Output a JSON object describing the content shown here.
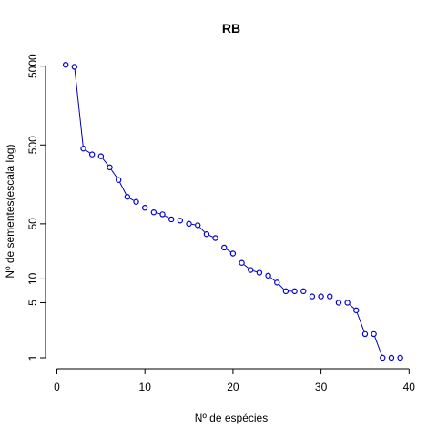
{
  "chart_data": {
    "type": "scatter",
    "title": "RB",
    "xlabel": "Nº de espécies",
    "ylabel": "Nº de sementes(escala log)",
    "xlim": [
      0,
      40
    ],
    "ylim": [
      1,
      6000
    ],
    "y_scale": "log",
    "x_ticks": [
      0,
      10,
      20,
      30,
      40
    ],
    "y_ticks": [
      1,
      5,
      10,
      50,
      500,
      5000
    ],
    "x_tick_labels": [
      "0",
      "10",
      "20",
      "30",
      "40"
    ],
    "y_tick_labels": [
      "1",
      "5",
      "10",
      "50",
      "500",
      "5000"
    ],
    "grid": false,
    "legend": "none",
    "marker": "open-circle",
    "colors": {
      "points": "#0000cd",
      "line": "#0000b4"
    },
    "series": [
      {
        "x": [
          1,
          2,
          3,
          4,
          5,
          6,
          7,
          8,
          9,
          10,
          11,
          12,
          13,
          14,
          15,
          16,
          17,
          18,
          19,
          20,
          21,
          22,
          23,
          24,
          25,
          26,
          27,
          28,
          29,
          30,
          31,
          32,
          33,
          34,
          35,
          36,
          37,
          38,
          39
        ],
        "y": [
          5200,
          4900,
          450,
          380,
          360,
          260,
          180,
          110,
          95,
          80,
          70,
          66,
          57,
          55,
          50,
          48,
          37,
          33,
          25,
          21,
          16,
          13,
          12,
          11,
          9,
          7,
          7,
          7,
          6,
          6,
          6,
          5,
          5,
          4,
          2,
          2,
          1,
          1,
          1
        ]
      }
    ],
    "line_segments": [
      [
        2,
        3
      ],
      [
        3,
        4
      ],
      [
        5,
        6
      ],
      [
        6,
        7
      ],
      [
        7,
        8
      ],
      [
        8,
        9
      ],
      [
        11,
        12
      ],
      [
        12,
        13
      ],
      [
        15,
        16
      ],
      [
        16,
        17
      ],
      [
        17,
        18
      ],
      [
        19,
        20
      ],
      [
        21,
        22
      ],
      [
        22,
        23
      ],
      [
        24,
        25
      ],
      [
        25,
        26
      ],
      [
        26,
        27
      ],
      [
        33,
        34
      ],
      [
        34,
        35
      ],
      [
        36,
        37
      ]
    ]
  }
}
